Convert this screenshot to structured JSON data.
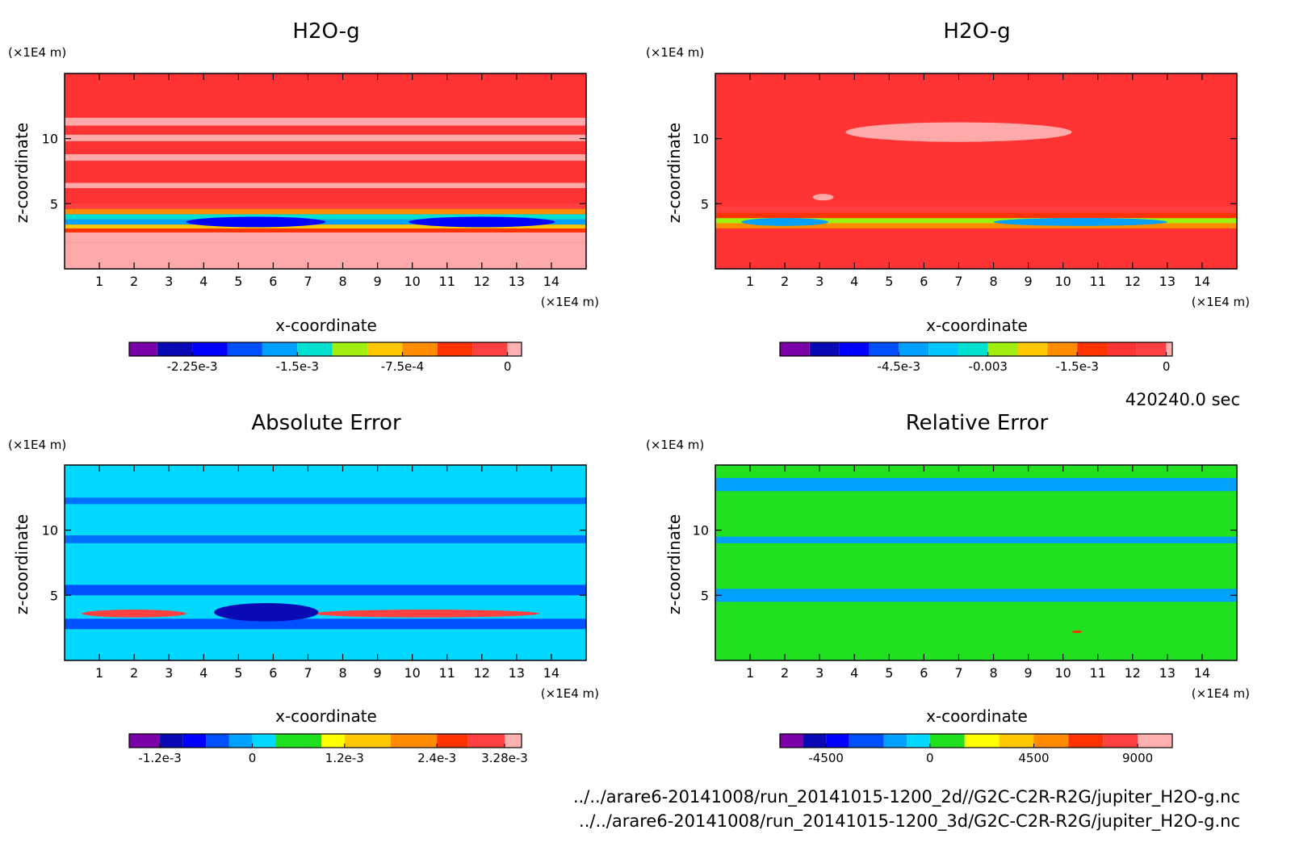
{
  "chart_data": [
    {
      "type": "heatmap",
      "title": "H2O-g",
      "xlabel": "x-coordinate",
      "ylabel": "z-coordinate",
      "x_unit": "(×1E4 m)",
      "y_unit": "(×1E4 m)",
      "xlim": [
        0,
        15
      ],
      "ylim": [
        0,
        15
      ],
      "x_ticks": [
        "1",
        "2",
        "3",
        "4",
        "5",
        "6",
        "7",
        "8",
        "9",
        "10",
        "11",
        "12",
        "13",
        "14"
      ],
      "y_ticks": [
        "5",
        "10"
      ],
      "background_level": 0,
      "bands": [
        {
          "z0": 0.0,
          "z1": 2.0,
          "value": 0
        },
        {
          "z0": 2.0,
          "z1": 2.8,
          "value": 0
        },
        {
          "z0": 2.8,
          "z1": 3.1,
          "value": -0.0003
        },
        {
          "z0": 3.1,
          "z1": 3.4,
          "value": -0.0009
        },
        {
          "z0": 3.4,
          "z1": 3.8,
          "value": -0.0016
        },
        {
          "z0": 3.8,
          "z1": 4.2,
          "value": -0.0013
        },
        {
          "z0": 4.2,
          "z1": 4.6,
          "value": -0.0007
        },
        {
          "z0": 4.6,
          "z1": 5.0,
          "value": -0.0002
        },
        {
          "z0": 6.2,
          "z1": 6.6,
          "value": 0
        },
        {
          "z0": 8.3,
          "z1": 8.8,
          "value": 0
        },
        {
          "z0": 9.8,
          "z1": 10.3,
          "value": 0
        },
        {
          "z0": 11.0,
          "z1": 11.6,
          "value": 0
        }
      ],
      "blobs": [
        {
          "x": 5.5,
          "z": 3.6,
          "w": 4.0,
          "h": 0.8,
          "value": -0.0022
        },
        {
          "x": 12.0,
          "z": 3.6,
          "w": 4.2,
          "h": 0.8,
          "value": -0.0022
        }
      ],
      "colorbar": {
        "levels": [
          -0.0027,
          -0.0025,
          -0.00225,
          -0.002,
          -0.00175,
          -0.0015,
          -0.00125,
          -0.001,
          -0.00075,
          -0.0005,
          -0.00025,
          0,
          0.0001
        ],
        "colors": [
          "#7a00a8",
          "#0a0ab4",
          "#0000ff",
          "#0050ff",
          "#00a0ff",
          "#00e0d0",
          "#a0ef10",
          "#ffc800",
          "#ff8c00",
          "#ff3300",
          "#ff4040",
          "#ffb0b0"
        ],
        "tick_labels": [
          "-2.25e-3",
          "-1.5e-3",
          "-7.5e-4",
          "0"
        ]
      }
    },
    {
      "type": "heatmap",
      "title": "H2O-g",
      "xlabel": "x-coordinate",
      "ylabel": "z-coordinate",
      "x_unit": "(×1E4 m)",
      "y_unit": "(×1E4 m)",
      "xlim": [
        0,
        15
      ],
      "ylim": [
        0,
        15
      ],
      "x_ticks": [
        "1",
        "2",
        "3",
        "4",
        "5",
        "6",
        "7",
        "8",
        "9",
        "10",
        "11",
        "12",
        "13",
        "14"
      ],
      "y_ticks": [
        "5",
        "10"
      ],
      "background_level": 0,
      "bands": [
        {
          "z0": 2.8,
          "z1": 3.1,
          "value": -0.0006
        },
        {
          "z0": 3.1,
          "z1": 3.5,
          "value": -0.0018
        },
        {
          "z0": 3.5,
          "z1": 3.9,
          "value": -0.0028
        },
        {
          "z0": 3.9,
          "z1": 4.3,
          "value": -0.0012
        },
        {
          "z0": 4.3,
          "z1": 4.8,
          "value": -0.0004
        }
      ],
      "blobs": [
        {
          "x": 2.0,
          "z": 3.6,
          "w": 2.5,
          "h": 0.6,
          "value": -0.0045
        },
        {
          "x": 10.5,
          "z": 3.6,
          "w": 5.0,
          "h": 0.6,
          "value": -0.0045
        },
        {
          "x": 7.0,
          "z": 10.5,
          "w": 6.5,
          "h": 1.5,
          "value": 0
        },
        {
          "x": 3.1,
          "z": 5.5,
          "w": 0.6,
          "h": 0.5,
          "value": 0
        }
      ],
      "colorbar": {
        "levels": [
          -0.0065,
          -0.006,
          -0.0055,
          -0.005,
          -0.0045,
          -0.004,
          -0.0035,
          -0.003,
          -0.0025,
          -0.002,
          -0.0015,
          -0.001,
          -0.0005,
          0,
          0.0001
        ],
        "colors": [
          "#7a00a8",
          "#0a0ab4",
          "#0000ff",
          "#0050ff",
          "#00a0ff",
          "#00c8ff",
          "#00e0d0",
          "#a0ef10",
          "#ffc800",
          "#ff8c00",
          "#ff3300",
          "#ff3333",
          "#ff4040",
          "#ffb0b0"
        ],
        "tick_labels": [
          "-4.5e-3",
          "-0.003",
          "-1.5e-3",
          "0"
        ]
      }
    },
    {
      "type": "heatmap",
      "title": "Absolute Error",
      "xlabel": "x-coordinate",
      "ylabel": "z-coordinate",
      "x_unit": "(×1E4 m)",
      "y_unit": "(×1E4 m)",
      "xlim": [
        0,
        15
      ],
      "ylim": [
        0,
        15
      ],
      "x_ticks": [
        "1",
        "2",
        "3",
        "4",
        "5",
        "6",
        "7",
        "8",
        "9",
        "10",
        "11",
        "12",
        "13",
        "14"
      ],
      "y_ticks": [
        "5",
        "10"
      ],
      "background_level": 0,
      "bands": [
        {
          "z0": 5.0,
          "z1": 5.8,
          "value": -0.0006
        },
        {
          "z0": 2.4,
          "z1": 3.2,
          "value": -0.0006
        },
        {
          "z0": 9.0,
          "z1": 9.6,
          "value": -0.0003
        },
        {
          "z0": 12.0,
          "z1": 12.5,
          "value": -0.0003
        }
      ],
      "blobs": [
        {
          "x": 2.0,
          "z": 3.6,
          "w": 3.0,
          "h": 0.6,
          "value": 0.0028
        },
        {
          "x": 10.4,
          "z": 3.6,
          "w": 6.5,
          "h": 0.6,
          "value": 0.0031
        },
        {
          "x": 5.8,
          "z": 3.7,
          "w": 3.0,
          "h": 1.4,
          "value": -0.0011
        }
      ],
      "colorbar": {
        "levels": [
          -0.0016,
          -0.0012,
          -0.0009,
          -0.0006,
          -0.0003,
          0,
          0.0003,
          0.0009,
          0.0012,
          0.0018,
          0.0024,
          0.0028,
          0.00328,
          0.0035
        ],
        "colors": [
          "#7a00a8",
          "#0a0ab4",
          "#0000ff",
          "#0050ff",
          "#00a0ff",
          "#00d8ff",
          "#20e020",
          "#ffff00",
          "#ffc800",
          "#ff8c00",
          "#ff3300",
          "#ff4040",
          "#ffb0b0"
        ],
        "tick_labels": [
          "-1.2e-3",
          "0",
          "1.2e-3",
          "2.4e-3",
          "3.28e-3"
        ]
      }
    },
    {
      "type": "heatmap",
      "title": "Relative Error",
      "xlabel": "x-coordinate",
      "ylabel": "z-coordinate",
      "x_unit": "(×1E4 m)",
      "y_unit": "(×1E4 m)",
      "xlim": [
        0,
        15
      ],
      "ylim": [
        0,
        15
      ],
      "x_ticks": [
        "1",
        "2",
        "3",
        "4",
        "5",
        "6",
        "7",
        "8",
        "9",
        "10",
        "11",
        "12",
        "13",
        "14"
      ],
      "y_ticks": [
        "5",
        "10"
      ],
      "background_level": 0,
      "bands": [
        {
          "z0": 13.0,
          "z1": 14.0,
          "value": -1000
        },
        {
          "z0": 4.5,
          "z1": 5.5,
          "value": -1000
        },
        {
          "z0": 9.0,
          "z1": 9.5,
          "value": -1000
        }
      ],
      "blobs": [
        {
          "x": 10.4,
          "z": 2.2,
          "w": 0.3,
          "h": 0.2,
          "value": 6000
        }
      ],
      "colorbar": {
        "levels": [
          -6500,
          -5500,
          -4500,
          -3500,
          -2000,
          -1000,
          0,
          1500,
          3000,
          4500,
          6000,
          7500,
          9000,
          10500
        ],
        "colors": [
          "#7a00a8",
          "#0a0ab4",
          "#0000ff",
          "#0050ff",
          "#00a0ff",
          "#00d8ff",
          "#20e020",
          "#ffff00",
          "#ffc800",
          "#ff8c00",
          "#ff3300",
          "#ff4040",
          "#ffb0b0"
        ],
        "tick_labels": [
          "-4500",
          "0",
          "4500",
          "9000"
        ]
      }
    }
  ],
  "palette": {
    "bg": "#ff3333",
    "light": "#ffaaaa"
  },
  "time_label": "420240.0 sec",
  "file_paths": [
    "../../arare6-20141008/run_20141015-1200_2d//G2C-C2R-R2G/jupiter_H2O-g.nc",
    "../../arare6-20141008/run_20141015-1200_3d/G2C-C2R-R2G/jupiter_H2O-g.nc"
  ]
}
